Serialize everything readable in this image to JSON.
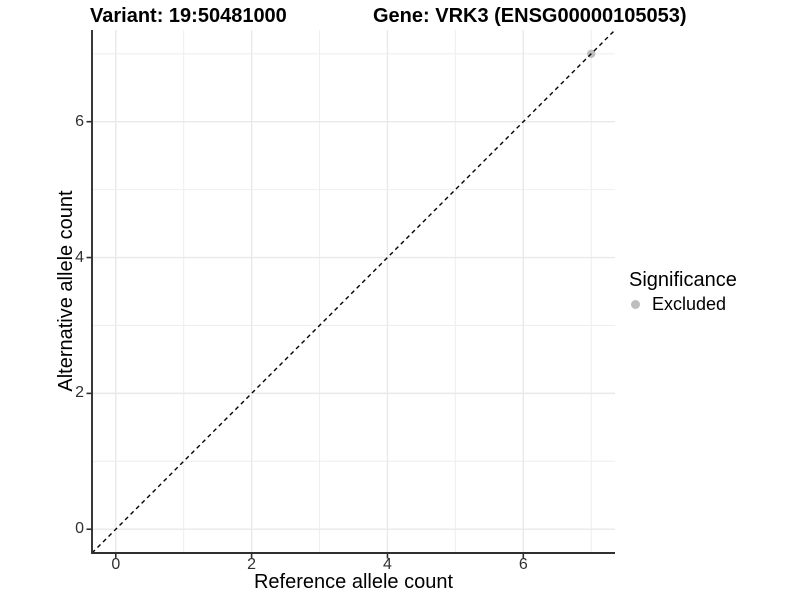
{
  "titles": {
    "variant": "Variant: 19:50481000",
    "gene": "Gene: VRK3 (ENSG00000105053)"
  },
  "legend": {
    "title": "Significance",
    "items": [
      {
        "label": "Excluded",
        "color": "#bebebe"
      }
    ]
  },
  "chart_data": {
    "type": "scatter",
    "title_left": "Variant: 19:50481000",
    "title_right": "Gene: VRK3 (ENSG00000105053)",
    "xlabel": "Reference allele count",
    "ylabel": "Alternative allele count",
    "xlim": [
      -0.35,
      7.35
    ],
    "ylim": [
      -0.35,
      7.35
    ],
    "x_ticks": [
      0,
      2,
      4,
      6
    ],
    "y_ticks": [
      0,
      2,
      4,
      6
    ],
    "x_minor_ticks": [
      1,
      3,
      5,
      7
    ],
    "y_minor_ticks": [
      1,
      3,
      5,
      7
    ],
    "grid": true,
    "legend_position": "right",
    "legend_title": "Significance",
    "series": [
      {
        "name": "Excluded",
        "color": "#bebebe",
        "points": [
          [
            7,
            7
          ]
        ]
      }
    ],
    "reference_line": {
      "slope": 1,
      "intercept": 0,
      "style": "dashed",
      "color": "#000000"
    }
  },
  "style": {
    "grid_major_color": "#e9e9e9",
    "grid_minor_color": "#efefef",
    "axis_color": "#2f2f2f",
    "tick_text_color": "#303030"
  }
}
